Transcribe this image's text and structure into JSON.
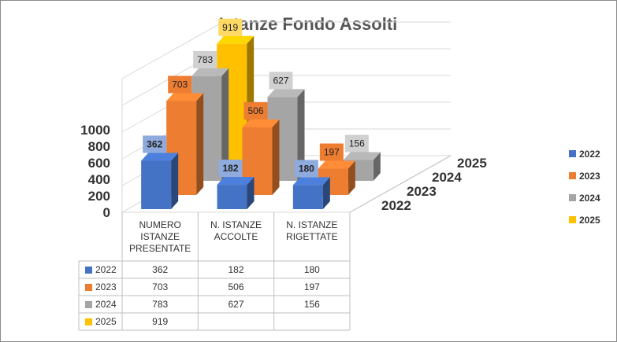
{
  "chart_data": {
    "type": "bar",
    "title": "Istanze Fondo Assolti",
    "categories": [
      "NUMERO ISTANZE PRESENTATE",
      "N. ISTANZE ACCOLTE",
      "N. ISTANZE RIGETTATE"
    ],
    "category_lines": [
      [
        "NUMERO",
        "ISTANZE",
        "PRESENTATE"
      ],
      [
        "N. ISTANZE",
        "ACCOLTE"
      ],
      [
        "N. ISTANZE",
        "RIGETTATE"
      ]
    ],
    "series": [
      {
        "name": "2022",
        "values": [
          362,
          182,
          180
        ],
        "color": "#4472C4",
        "label_color": "#8FAADC"
      },
      {
        "name": "2023",
        "values": [
          703,
          506,
          197
        ],
        "color": "#ED7D31",
        "label_color": "#ED7D31"
      },
      {
        "name": "2024",
        "values": [
          783,
          627,
          156
        ],
        "color": "#A5A5A5",
        "label_color": "#D0D0D0"
      },
      {
        "name": "2025",
        "values": [
          919,
          null,
          null
        ],
        "color": "#FFC000",
        "label_color": "#FFD966"
      }
    ],
    "yticks": [
      0,
      200,
      400,
      600,
      800,
      1000
    ],
    "ylim": [
      0,
      1000
    ],
    "data_table": true,
    "legend": "right",
    "grid": true,
    "view": "3d-column"
  }
}
